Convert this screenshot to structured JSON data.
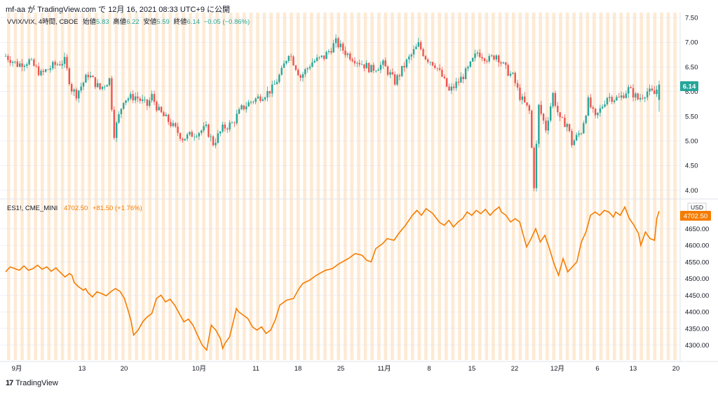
{
  "header": {
    "text": "mf-aa が TradingView.com で 12月 16, 2021 08:33 UTC+9 に公開"
  },
  "footer": {
    "logo": "17",
    "brand": "TradingView"
  },
  "colors": {
    "up": "#26a69a",
    "down": "#ef5350",
    "line": "#f57c00",
    "band": "#fde3c4",
    "grid": "#e0e3eb",
    "last_price_bg_top": "#26a69a",
    "last_price_bg_bottom": "#f57c00"
  },
  "chart_data": [
    {
      "type": "candlestick",
      "legend": {
        "symbol": "VVIX/VIX, 4時間, CBOE",
        "open_label": "始値",
        "open": "5.83",
        "high_label": "高値",
        "high": "6.22",
        "low_label": "安値",
        "low": "5.59",
        "close_label": "終値",
        "close": "6.14",
        "change": "−0.05 (−0.86%)"
      },
      "last_value": "6.14",
      "ylim": [
        3.85,
        7.6
      ],
      "yticks": [
        "7.50",
        "7.00",
        "6.50",
        "6.00",
        "5.50",
        "5.00",
        "4.50",
        "4.00"
      ],
      "close_path": [
        [
          0,
          6.72
        ],
        [
          5,
          6.55
        ],
        [
          10,
          6.62
        ],
        [
          15,
          6.35
        ],
        [
          20,
          6.52
        ],
        [
          25,
          6.62
        ],
        [
          28,
          6.05
        ],
        [
          30,
          5.95
        ],
        [
          35,
          6.35
        ],
        [
          40,
          6.05
        ],
        [
          44,
          6.25
        ],
        [
          46,
          5.15
        ],
        [
          50,
          5.85
        ],
        [
          55,
          5.9
        ],
        [
          60,
          5.72
        ],
        [
          62,
          5.9
        ],
        [
          65,
          5.6
        ],
        [
          70,
          5.35
        ],
        [
          75,
          5.05
        ],
        [
          80,
          5.15
        ],
        [
          85,
          5.25
        ],
        [
          88,
          4.95
        ],
        [
          92,
          5.25
        ],
        [
          96,
          5.35
        ],
        [
          100,
          5.65
        ],
        [
          104,
          5.8
        ],
        [
          110,
          5.95
        ],
        [
          113,
          6.05
        ],
        [
          117,
          6.4
        ],
        [
          120,
          6.8
        ],
        [
          125,
          6.3
        ],
        [
          130,
          6.6
        ],
        [
          135,
          6.7
        ],
        [
          140,
          7.0
        ],
        [
          145,
          6.75
        ],
        [
          150,
          6.6
        ],
        [
          155,
          6.45
        ],
        [
          160,
          6.55
        ],
        [
          165,
          6.2
        ],
        [
          170,
          6.6
        ],
        [
          175,
          6.95
        ],
        [
          178,
          6.7
        ],
        [
          182,
          6.55
        ],
        [
          185,
          6.3
        ],
        [
          188,
          6.0
        ],
        [
          192,
          6.2
        ],
        [
          196,
          6.45
        ],
        [
          200,
          6.8
        ],
        [
          205,
          6.65
        ],
        [
          208,
          6.75
        ],
        [
          212,
          6.45
        ],
        [
          215,
          6.3
        ],
        [
          218,
          5.9
        ],
        [
          222,
          5.6
        ],
        [
          224,
          4.1
        ],
        [
          226,
          5.7
        ],
        [
          229,
          5.25
        ],
        [
          232,
          5.95
        ],
        [
          235,
          5.4
        ],
        [
          238,
          5.35
        ],
        [
          240,
          4.95
        ],
        [
          244,
          5.2
        ],
        [
          247,
          5.8
        ],
        [
          250,
          5.45
        ],
        [
          255,
          5.9
        ],
        [
          260,
          5.85
        ],
        [
          264,
          6.05
        ],
        [
          268,
          5.85
        ],
        [
          272,
          6.0
        ],
        [
          275,
          5.95
        ],
        [
          277,
          6.14
        ]
      ],
      "ohlc": []
    },
    {
      "type": "line",
      "legend": {
        "symbol": "ES1!, CME_MINI",
        "last": "4702.50",
        "change": "+81.50 (+1.76%)"
      },
      "axis_unit": "USD",
      "last_value": "4702.50",
      "ylim": [
        4255,
        4735
      ],
      "yticks": [
        "4650.00",
        "4600.00",
        "4550.00",
        "4500.00",
        "4450.00",
        "4400.00",
        "4350.00",
        "4300.00"
      ],
      "points": [
        [
          0,
          4520
        ],
        [
          2,
          4535
        ],
        [
          4,
          4530
        ],
        [
          6,
          4525
        ],
        [
          8,
          4538
        ],
        [
          10,
          4525
        ],
        [
          12,
          4530
        ],
        [
          14,
          4540
        ],
        [
          16,
          4528
        ],
        [
          18,
          4535
        ],
        [
          20,
          4522
        ],
        [
          22,
          4532
        ],
        [
          24,
          4518
        ],
        [
          26,
          4505
        ],
        [
          28,
          4515
        ],
        [
          29,
          4510
        ],
        [
          30,
          4488
        ],
        [
          32,
          4475
        ],
        [
          34,
          4465
        ],
        [
          35,
          4470
        ],
        [
          36,
          4458
        ],
        [
          38,
          4445
        ],
        [
          40,
          4460
        ],
        [
          42,
          4455
        ],
        [
          44,
          4448
        ],
        [
          46,
          4460
        ],
        [
          48,
          4470
        ],
        [
          50,
          4462
        ],
        [
          52,
          4440
        ],
        [
          54,
          4395
        ],
        [
          55,
          4370
        ],
        [
          56,
          4330
        ],
        [
          58,
          4345
        ],
        [
          60,
          4370
        ],
        [
          62,
          4385
        ],
        [
          64,
          4395
        ],
        [
          66,
          4440
        ],
        [
          68,
          4450
        ],
        [
          70,
          4430
        ],
        [
          72,
          4438
        ],
        [
          74,
          4420
        ],
        [
          76,
          4395
        ],
        [
          78,
          4370
        ],
        [
          80,
          4378
        ],
        [
          82,
          4360
        ],
        [
          84,
          4330
        ],
        [
          86,
          4300
        ],
        [
          88,
          4285
        ],
        [
          90,
          4360
        ],
        [
          92,
          4345
        ],
        [
          94,
          4320
        ],
        [
          95,
          4290
        ],
        [
          96,
          4305
        ],
        [
          98,
          4325
        ],
        [
          100,
          4380
        ],
        [
          101,
          4410
        ],
        [
          102,
          4400
        ],
        [
          104,
          4390
        ],
        [
          106,
          4380
        ],
        [
          108,
          4355
        ],
        [
          110,
          4345
        ],
        [
          112,
          4355
        ],
        [
          114,
          4335
        ],
        [
          116,
          4345
        ],
        [
          118,
          4375
        ],
        [
          120,
          4420
        ],
        [
          123,
          4435
        ],
        [
          126,
          4440
        ],
        [
          128,
          4465
        ],
        [
          130,
          4485
        ],
        [
          133,
          4495
        ],
        [
          136,
          4510
        ],
        [
          140,
          4525
        ],
        [
          143,
          4530
        ],
        [
          146,
          4545
        ],
        [
          150,
          4560
        ],
        [
          153,
          4575
        ],
        [
          156,
          4570
        ],
        [
          158,
          4555
        ],
        [
          160,
          4550
        ],
        [
          162,
          4590
        ],
        [
          165,
          4605
        ],
        [
          167,
          4620
        ],
        [
          170,
          4615
        ],
        [
          172,
          4635
        ],
        [
          175,
          4660
        ],
        [
          178,
          4690
        ],
        [
          180,
          4705
        ],
        [
          182,
          4690
        ],
        [
          184,
          4710
        ],
        [
          187,
          4695
        ],
        [
          190,
          4668
        ],
        [
          192,
          4660
        ],
        [
          194,
          4675
        ],
        [
          196,
          4655
        ],
        [
          198,
          4670
        ],
        [
          200,
          4680
        ],
        [
          202,
          4700
        ],
        [
          204,
          4690
        ],
        [
          206,
          4705
        ],
        [
          208,
          4695
        ],
        [
          210,
          4708
        ],
        [
          212,
          4690
        ],
        [
          214,
          4705
        ],
        [
          216,
          4715
        ],
        [
          217,
          4700
        ],
        [
          219,
          4690
        ],
        [
          221,
          4670
        ],
        [
          223,
          4680
        ],
        [
          225,
          4670
        ],
        [
          226,
          4645
        ],
        [
          228,
          4595
        ],
        [
          230,
          4620
        ],
        [
          232,
          4650
        ],
        [
          234,
          4610
        ],
        [
          236,
          4630
        ],
        [
          238,
          4590
        ],
        [
          240,
          4545
        ],
        [
          242,
          4510
        ],
        [
          244,
          4560
        ],
        [
          246,
          4520
        ],
        [
          248,
          4535
        ],
        [
          250,
          4550
        ],
        [
          252,
          4610
        ],
        [
          254,
          4640
        ],
        [
          256,
          4690
        ],
        [
          258,
          4700
        ],
        [
          260,
          4690
        ],
        [
          262,
          4705
        ],
        [
          264,
          4700
        ],
        [
          266,
          4685
        ],
        [
          267,
          4700
        ],
        [
          269,
          4690
        ],
        [
          271,
          4715
        ],
        [
          273,
          4680
        ],
        [
          275,
          4660
        ],
        [
          277,
          4635
        ],
        [
          278,
          4600
        ],
        [
          280,
          4640
        ],
        [
          282,
          4620
        ],
        [
          284,
          4615
        ],
        [
          285,
          4680
        ],
        [
          286,
          4702.5
        ]
      ]
    }
  ],
  "x_axis": {
    "ticks": [
      {
        "label": "9月",
        "pos": 24
      },
      {
        "label": "13",
        "pos": 117
      },
      {
        "label": "20",
        "pos": 177
      },
      {
        "label": "10月",
        "pos": 284
      },
      {
        "label": "11",
        "pos": 365
      },
      {
        "label": "18",
        "pos": 425
      },
      {
        "label": "25",
        "pos": 486
      },
      {
        "label": "11月",
        "pos": 548
      },
      {
        "label": "8",
        "pos": 612
      },
      {
        "label": "15",
        "pos": 673
      },
      {
        "label": "22",
        "pos": 734
      },
      {
        "label": "12月",
        "pos": 795
      },
      {
        "label": "6",
        "pos": 852
      },
      {
        "label": "13",
        "pos": 903
      },
      {
        "label": "20",
        "pos": 964
      }
    ]
  }
}
